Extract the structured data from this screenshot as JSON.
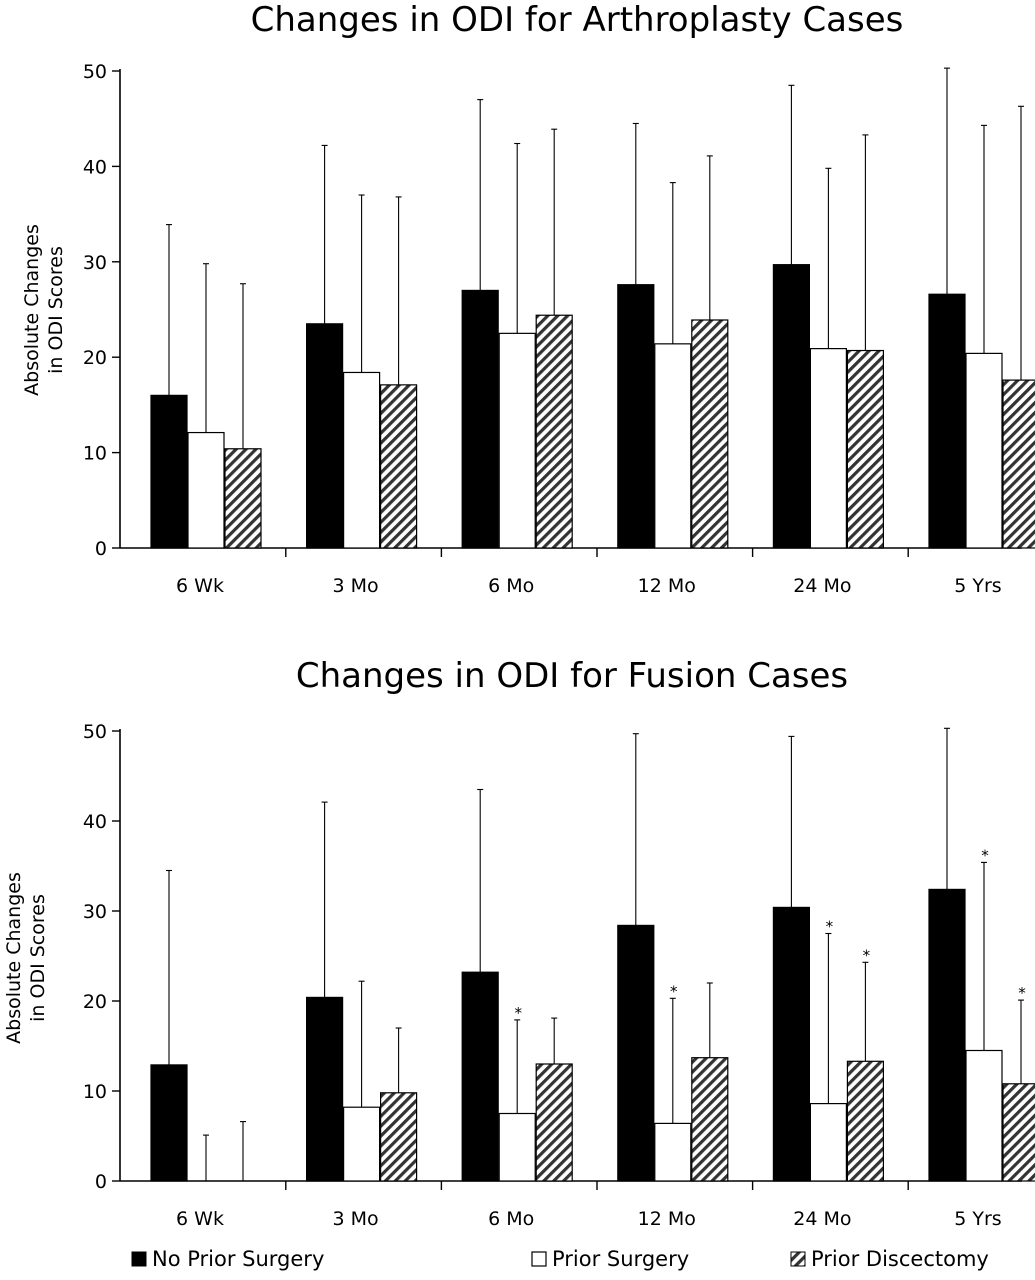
{
  "legend": [
    {
      "label": "No Prior Surgery",
      "pattern": "solid",
      "color": "#000000"
    },
    {
      "label": "Prior Surgery",
      "pattern": "open",
      "color": "#ffffff"
    },
    {
      "label": "Prior Discectomy",
      "pattern": "hatched",
      "color": "#555555"
    }
  ],
  "chart_data": [
    {
      "type": "bar",
      "title": "Changes in ODI for Arthroplasty Cases",
      "ylabel": [
        "Absolute Changes",
        "in ODI Scores"
      ],
      "xlabel": "",
      "ylim": [
        0,
        50
      ],
      "yticks": [
        0,
        10,
        20,
        30,
        40,
        50
      ],
      "grid": false,
      "categories": [
        "6 Wk",
        "3 Mo",
        "6 Mo",
        "12 Mo",
        "24 Mo",
        "5 Yrs"
      ],
      "series": [
        {
          "name": "No Prior Surgery",
          "values": [
            16.0,
            23.5,
            27.0,
            27.6,
            29.7,
            26.6
          ],
          "error_upper": [
            33.9,
            42.2,
            47.0,
            44.5,
            48.5,
            50.3
          ],
          "significant": [
            false,
            false,
            false,
            false,
            false,
            false
          ]
        },
        {
          "name": "Prior Surgery",
          "values": [
            12.1,
            18.4,
            22.5,
            21.4,
            20.9,
            20.4
          ],
          "error_upper": [
            29.8,
            37.0,
            42.4,
            38.3,
            39.8,
            44.3
          ],
          "significant": [
            false,
            false,
            false,
            false,
            false,
            false
          ]
        },
        {
          "name": "Prior Discectomy",
          "values": [
            10.4,
            17.1,
            24.4,
            23.9,
            20.7,
            17.6
          ],
          "error_upper": [
            27.7,
            36.8,
            43.9,
            41.1,
            43.3,
            46.3
          ],
          "significant": [
            false,
            false,
            false,
            false,
            false,
            false
          ]
        }
      ]
    },
    {
      "type": "bar",
      "title": "Changes in ODI for Fusion Cases",
      "ylabel": [
        "Absolute Changes",
        "in ODI Scores"
      ],
      "xlabel": "",
      "ylim": [
        0,
        50
      ],
      "yticks": [
        0,
        10,
        20,
        30,
        40,
        50
      ],
      "grid": false,
      "categories": [
        "6 Wk",
        "3 Mo",
        "6 Mo",
        "12 Mo",
        "24 Mo",
        "5 Yrs"
      ],
      "series": [
        {
          "name": "No Prior Surgery",
          "values": [
            12.9,
            20.4,
            23.2,
            28.4,
            30.4,
            32.4
          ],
          "error_upper": [
            34.5,
            42.1,
            43.5,
            49.7,
            49.4,
            50.3
          ],
          "significant": [
            false,
            false,
            false,
            false,
            false,
            false
          ]
        },
        {
          "name": "Prior Surgery",
          "values": [
            0,
            8.2,
            7.5,
            6.4,
            8.6,
            14.5
          ],
          "error_upper": [
            5.1,
            22.2,
            17.9,
            20.3,
            27.5,
            35.4
          ],
          "significant": [
            false,
            false,
            true,
            true,
            true,
            true
          ]
        },
        {
          "name": "Prior Discectomy",
          "values": [
            0,
            9.8,
            13.0,
            13.7,
            13.3,
            10.8
          ],
          "error_upper": [
            6.6,
            17.0,
            18.1,
            22.0,
            24.3,
            20.1
          ],
          "significant": [
            false,
            false,
            false,
            false,
            true,
            true
          ]
        }
      ],
      "annotation_text": "*"
    }
  ]
}
